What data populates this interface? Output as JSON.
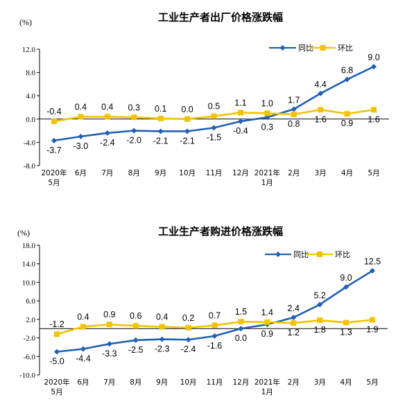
{
  "chart_data": [
    {
      "type": "line",
      "title": "工业生产者出厂价格涨跌幅",
      "unit": "(%)",
      "categories": [
        [
          "2020年",
          "5月"
        ],
        [
          "6月"
        ],
        [
          "7月"
        ],
        [
          "8月"
        ],
        [
          "9月"
        ],
        [
          "10月"
        ],
        [
          "11月"
        ],
        [
          "12月"
        ],
        [
          "2021年",
          "1月"
        ],
        [
          "2月"
        ],
        [
          "3月"
        ],
        [
          "4月"
        ],
        [
          "5月"
        ]
      ],
      "yticks": [
        12.0,
        8.0,
        4.0,
        0.0,
        -4.0,
        -8.0
      ],
      "ytick_labels": [
        "12.0",
        "8.0",
        "4.0",
        "0.0",
        "-4.0",
        "-8.0"
      ],
      "ylim": [
        -8,
        12
      ],
      "legend_position": "top-right",
      "grid": false,
      "series": [
        {
          "name": "同比",
          "color": "#1f5fb4",
          "marker": "diamond",
          "values": [
            -3.7,
            -3.0,
            -2.4,
            -2.0,
            -2.1,
            -2.1,
            -1.5,
            -0.4,
            0.3,
            1.7,
            4.4,
            6.8,
            9.0
          ],
          "labels": [
            "-3.7",
            "-3.0",
            "-2.4",
            "-2.0",
            "-2.1",
            "-2.1",
            "-1.5",
            "-0.4",
            "0.3",
            "1.7",
            "4.4",
            "6.8",
            "9.0"
          ]
        },
        {
          "name": "环比",
          "color": "#f2c200",
          "marker": "square",
          "values": [
            -0.4,
            0.4,
            0.4,
            0.3,
            0.1,
            0.0,
            0.5,
            1.1,
            1.0,
            0.8,
            1.6,
            0.9,
            1.6
          ],
          "labels": [
            "-0.4",
            "0.4",
            "0.4",
            "0.3",
            "0.1",
            "0.0",
            "0.5",
            "1.1",
            "1.0",
            "0.8",
            "1.6",
            "0.9",
            "1.6"
          ]
        }
      ]
    },
    {
      "type": "line",
      "title": "工业生产者购进价格涨跌幅",
      "unit": "(%)",
      "categories": [
        [
          "2020年",
          "5月"
        ],
        [
          "6月"
        ],
        [
          "7月"
        ],
        [
          "8月"
        ],
        [
          "9月"
        ],
        [
          "10月"
        ],
        [
          "11月"
        ],
        [
          "12月"
        ],
        [
          "2021年",
          "1月"
        ],
        [
          "2月"
        ],
        [
          "3月"
        ],
        [
          "4月"
        ],
        [
          "5月"
        ]
      ],
      "yticks": [
        18.0,
        14.0,
        10.0,
        6.0,
        2.0,
        -2.0,
        -6.0,
        -10.0
      ],
      "ytick_labels": [
        "18.0",
        "14.0",
        "10.0",
        "6.0",
        "2.0",
        "-2.0",
        "-6.0",
        "-10.0"
      ],
      "ylim": [
        -10,
        18
      ],
      "legend_position": "top-right",
      "grid": false,
      "series": [
        {
          "name": "同比",
          "color": "#1f5fb4",
          "marker": "diamond",
          "values": [
            -5.0,
            -4.4,
            -3.3,
            -2.5,
            -2.3,
            -2.4,
            -1.6,
            0.0,
            0.9,
            2.4,
            5.2,
            9.0,
            12.5
          ],
          "labels": [
            "-5.0",
            "-4.4",
            "-3.3",
            "-2.5",
            "-2.3",
            "-2.4",
            "-1.6",
            "0.0",
            "0.9",
            "2.4",
            "5.2",
            "9.0",
            "12.5"
          ]
        },
        {
          "name": "环比",
          "color": "#f2c200",
          "marker": "square",
          "values": [
            -1.2,
            0.4,
            0.9,
            0.6,
            0.4,
            0.2,
            0.7,
            1.5,
            1.4,
            1.2,
            1.8,
            1.3,
            1.9
          ],
          "labels": [
            "-1.2",
            "0.4",
            "0.9",
            "0.6",
            "0.4",
            "0.2",
            "0.7",
            "1.5",
            "1.4",
            "1.2",
            "1.8",
            "1.3",
            "1.9"
          ]
        }
      ]
    }
  ]
}
